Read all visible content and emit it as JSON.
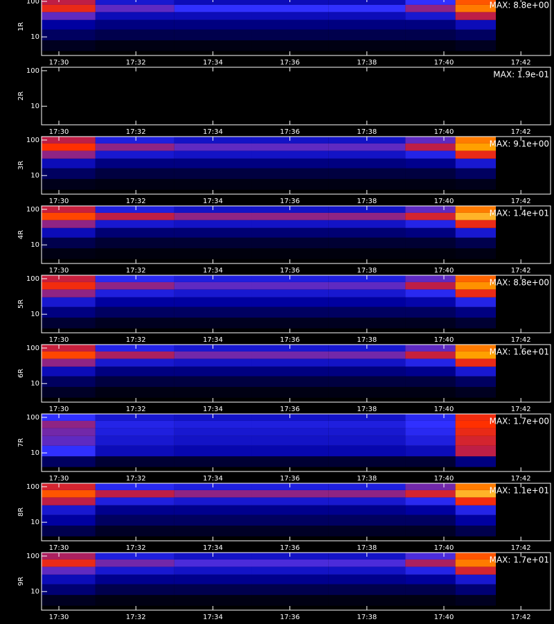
{
  "chart_data": [
    {
      "type": "heatmap",
      "ylabel": "1R",
      "annotation": "MAX: 8.8e+00",
      "log_y": true,
      "zlim": [
        0,
        1
      ],
      "xlim": [
        1049.55,
        1062.77
      ],
      "ylim": [
        3,
        125
      ],
      "xticks": [
        {
          "value": 1050,
          "label": "17:30"
        },
        {
          "value": 1052,
          "label": "17:32"
        },
        {
          "value": 1054,
          "label": "17:34"
        },
        {
          "value": 1056,
          "label": "17:36"
        },
        {
          "value": 1058,
          "label": "17:38"
        },
        {
          "value": 1060,
          "label": "17:40"
        },
        {
          "value": 1062,
          "label": "17:42"
        }
      ],
      "yticks": [
        10,
        100
      ],
      "x_bins": [
        1049.55,
        1050.95,
        1053,
        1055,
        1057,
        1059,
        1060.3,
        1061.35
      ],
      "y_bins": [
        4,
        8,
        16,
        30,
        50,
        80,
        125
      ],
      "values": [
        [
          0.05,
          0.03,
          0.03,
          0.03,
          0.03,
          0.03,
          0.05
        ],
        [
          0.15,
          0.12,
          0.12,
          0.12,
          0.12,
          0.12,
          0.15
        ],
        [
          0.25,
          0.2,
          0.2,
          0.2,
          0.2,
          0.2,
          0.3
        ],
        [
          0.5,
          0.3,
          0.3,
          0.3,
          0.3,
          0.35,
          0.6
        ],
        [
          0.7,
          0.5,
          0.45,
          0.45,
          0.45,
          0.55,
          0.85
        ],
        [
          0.6,
          0.35,
          0.3,
          0.3,
          0.3,
          0.45,
          0.8
        ]
      ]
    },
    {
      "type": "heatmap",
      "ylabel": "2R",
      "annotation": "MAX: 1.9e-01",
      "log_y": true,
      "zlim": [
        0,
        1
      ],
      "xlim": [
        1049.55,
        1062.77
      ],
      "ylim": [
        3,
        125
      ],
      "xticks": [
        {
          "value": 1050,
          "label": "17:30"
        },
        {
          "value": 1052,
          "label": "17:32"
        },
        {
          "value": 1054,
          "label": "17:34"
        },
        {
          "value": 1056,
          "label": "17:36"
        },
        {
          "value": 1058,
          "label": "17:38"
        },
        {
          "value": 1060,
          "label": "17:40"
        },
        {
          "value": 1062,
          "label": "17:42"
        }
      ],
      "yticks": [
        10,
        100
      ],
      "x_bins": [
        1049.55,
        1050.95,
        1053,
        1055,
        1057,
        1059,
        1060.3,
        1061.35
      ],
      "y_bins": [
        4,
        8,
        16,
        30,
        50,
        80,
        125
      ],
      "values": [
        [
          0,
          0,
          0,
          0,
          0,
          0,
          0
        ],
        [
          0,
          0,
          0,
          0,
          0,
          0,
          0
        ],
        [
          0,
          0,
          0,
          0,
          0,
          0,
          0
        ],
        [
          0,
          0,
          0,
          0,
          0,
          0,
          0
        ],
        [
          0,
          0,
          0,
          0,
          0,
          0,
          0
        ],
        [
          0,
          0,
          0,
          0,
          0,
          0,
          0
        ]
      ]
    },
    {
      "type": "heatmap",
      "ylabel": "3R",
      "annotation": "MAX: 9.1e+00",
      "log_y": true,
      "zlim": [
        0,
        1
      ],
      "xlim": [
        1049.55,
        1062.77
      ],
      "ylim": [
        3,
        125
      ],
      "xticks": [
        {
          "value": 1050,
          "label": "17:30"
        },
        {
          "value": 1052,
          "label": "17:32"
        },
        {
          "value": 1054,
          "label": "17:34"
        },
        {
          "value": 1056,
          "label": "17:36"
        },
        {
          "value": 1058,
          "label": "17:38"
        },
        {
          "value": 1060,
          "label": "17:40"
        },
        {
          "value": 1062,
          "label": "17:42"
        }
      ],
      "yticks": [
        10,
        100
      ],
      "x_bins": [
        1049.55,
        1050.95,
        1053,
        1055,
        1057,
        1059,
        1060.3,
        1061.35
      ],
      "y_bins": [
        4,
        8,
        16,
        30,
        50,
        80,
        125
      ],
      "values": [
        [
          0.04,
          0.03,
          0.03,
          0.03,
          0.03,
          0.03,
          0.04
        ],
        [
          0.15,
          0.1,
          0.1,
          0.1,
          0.1,
          0.1,
          0.15
        ],
        [
          0.3,
          0.2,
          0.2,
          0.2,
          0.2,
          0.22,
          0.35
        ],
        [
          0.55,
          0.35,
          0.33,
          0.33,
          0.33,
          0.4,
          0.7
        ],
        [
          0.75,
          0.55,
          0.5,
          0.5,
          0.5,
          0.6,
          0.9
        ],
        [
          0.6,
          0.38,
          0.33,
          0.33,
          0.33,
          0.5,
          0.85
        ]
      ]
    },
    {
      "type": "heatmap",
      "ylabel": "4R",
      "annotation": "MAX: 1.4e+01",
      "log_y": true,
      "zlim": [
        0,
        1
      ],
      "xlim": [
        1049.55,
        1062.77
      ],
      "ylim": [
        3,
        125
      ],
      "xticks": [
        {
          "value": 1050,
          "label": "17:30"
        },
        {
          "value": 1052,
          "label": "17:32"
        },
        {
          "value": 1054,
          "label": "17:34"
        },
        {
          "value": 1056,
          "label": "17:36"
        },
        {
          "value": 1058,
          "label": "17:38"
        },
        {
          "value": 1060,
          "label": "17:40"
        },
        {
          "value": 1062,
          "label": "17:42"
        }
      ],
      "yticks": [
        10,
        100
      ],
      "x_bins": [
        1049.55,
        1050.95,
        1053,
        1055,
        1057,
        1059,
        1060.3,
        1061.35
      ],
      "y_bins": [
        4,
        8,
        16,
        30,
        50,
        80,
        125
      ],
      "values": [
        [
          0.03,
          0.02,
          0.02,
          0.02,
          0.02,
          0.02,
          0.03
        ],
        [
          0.12,
          0.08,
          0.08,
          0.08,
          0.08,
          0.08,
          0.12
        ],
        [
          0.3,
          0.18,
          0.18,
          0.18,
          0.18,
          0.2,
          0.35
        ],
        [
          0.55,
          0.35,
          0.33,
          0.33,
          0.33,
          0.4,
          0.7
        ],
        [
          0.78,
          0.6,
          0.55,
          0.55,
          0.55,
          0.65,
          0.92
        ],
        [
          0.62,
          0.38,
          0.33,
          0.33,
          0.33,
          0.5,
          0.85
        ]
      ]
    },
    {
      "type": "heatmap",
      "ylabel": "5R",
      "annotation": "MAX: 8.8e+00",
      "log_y": true,
      "zlim": [
        0,
        1
      ],
      "xlim": [
        1049.55,
        1062.77
      ],
      "ylim": [
        3,
        125
      ],
      "xticks": [
        {
          "value": 1050,
          "label": "17:30"
        },
        {
          "value": 1052,
          "label": "17:32"
        },
        {
          "value": 1054,
          "label": "17:34"
        },
        {
          "value": 1056,
          "label": "17:36"
        },
        {
          "value": 1058,
          "label": "17:38"
        },
        {
          "value": 1060,
          "label": "17:40"
        },
        {
          "value": 1062,
          "label": "17:42"
        }
      ],
      "yticks": [
        10,
        100
      ],
      "x_bins": [
        1049.55,
        1050.95,
        1053,
        1055,
        1057,
        1059,
        1060.3,
        1061.35
      ],
      "y_bins": [
        4,
        8,
        16,
        30,
        50,
        80,
        125
      ],
      "values": [
        [
          0.08,
          0.05,
          0.05,
          0.05,
          0.05,
          0.05,
          0.08
        ],
        [
          0.2,
          0.15,
          0.15,
          0.15,
          0.15,
          0.15,
          0.2
        ],
        [
          0.35,
          0.25,
          0.25,
          0.25,
          0.25,
          0.27,
          0.4
        ],
        [
          0.55,
          0.38,
          0.35,
          0.35,
          0.35,
          0.42,
          0.7
        ],
        [
          0.72,
          0.55,
          0.5,
          0.5,
          0.5,
          0.6,
          0.88
        ],
        [
          0.62,
          0.42,
          0.38,
          0.38,
          0.38,
          0.5,
          0.82
        ]
      ]
    },
    {
      "type": "heatmap",
      "ylabel": "6R",
      "annotation": "MAX: 1.6e+01",
      "log_y": true,
      "zlim": [
        0,
        1
      ],
      "xlim": [
        1049.55,
        1062.77
      ],
      "ylim": [
        3,
        125
      ],
      "xticks": [
        {
          "value": 1050,
          "label": "17:30"
        },
        {
          "value": 1052,
          "label": "17:32"
        },
        {
          "value": 1054,
          "label": "17:34"
        },
        {
          "value": 1056,
          "label": "17:36"
        },
        {
          "value": 1058,
          "label": "17:38"
        },
        {
          "value": 1060,
          "label": "17:40"
        },
        {
          "value": 1062,
          "label": "17:42"
        }
      ],
      "yticks": [
        10,
        100
      ],
      "x_bins": [
        1049.55,
        1050.95,
        1053,
        1055,
        1057,
        1059,
        1060.3,
        1061.35
      ],
      "y_bins": [
        4,
        8,
        16,
        30,
        50,
        80,
        125
      ],
      "values": [
        [
          0.06,
          0.03,
          0.03,
          0.03,
          0.03,
          0.03,
          0.05
        ],
        [
          0.15,
          0.1,
          0.1,
          0.1,
          0.1,
          0.1,
          0.15
        ],
        [
          0.3,
          0.2,
          0.2,
          0.2,
          0.2,
          0.22,
          0.35
        ],
        [
          0.55,
          0.35,
          0.33,
          0.33,
          0.33,
          0.4,
          0.7
        ],
        [
          0.78,
          0.58,
          0.52,
          0.52,
          0.52,
          0.62,
          0.9
        ],
        [
          0.62,
          0.4,
          0.35,
          0.35,
          0.35,
          0.5,
          0.85
        ]
      ]
    },
    {
      "type": "heatmap",
      "ylabel": "7R",
      "annotation": "MAX: 1.7e+00",
      "log_y": true,
      "zlim": [
        0,
        1
      ],
      "xlim": [
        1049.55,
        1062.77
      ],
      "ylim": [
        3,
        125
      ],
      "xticks": [
        {
          "value": 1050,
          "label": "17:30"
        },
        {
          "value": 1052,
          "label": "17:32"
        },
        {
          "value": 1054,
          "label": "17:34"
        },
        {
          "value": 1056,
          "label": "17:36"
        },
        {
          "value": 1058,
          "label": "17:38"
        },
        {
          "value": 1060,
          "label": "17:40"
        },
        {
          "value": 1062,
          "label": "17:42"
        }
      ],
      "yticks": [
        10,
        100
      ],
      "x_bins": [
        1049.55,
        1050.95,
        1053,
        1055,
        1057,
        1059,
        1060.3,
        1061.35
      ],
      "y_bins": [
        4,
        8,
        16,
        30,
        50,
        80,
        125
      ],
      "values": [
        [
          0.15,
          0.08,
          0.08,
          0.08,
          0.08,
          0.08,
          0.2
        ],
        [
          0.45,
          0.3,
          0.28,
          0.28,
          0.28,
          0.3,
          0.6
        ],
        [
          0.5,
          0.35,
          0.33,
          0.33,
          0.33,
          0.38,
          0.65
        ],
        [
          0.52,
          0.38,
          0.35,
          0.35,
          0.35,
          0.42,
          0.7
        ],
        [
          0.55,
          0.4,
          0.38,
          0.38,
          0.38,
          0.45,
          0.75
        ],
        [
          0.45,
          0.35,
          0.33,
          0.33,
          0.33,
          0.42,
          0.72
        ]
      ]
    },
    {
      "type": "heatmap",
      "ylabel": "8R",
      "annotation": "MAX: 1.1e+01",
      "log_y": true,
      "zlim": [
        0,
        1
      ],
      "xlim": [
        1049.55,
        1062.77
      ],
      "ylim": [
        3,
        125
      ],
      "xticks": [
        {
          "value": 1050,
          "label": "17:30"
        },
        {
          "value": 1052,
          "label": "17:32"
        },
        {
          "value": 1054,
          "label": "17:34"
        },
        {
          "value": 1056,
          "label": "17:36"
        },
        {
          "value": 1058,
          "label": "17:38"
        },
        {
          "value": 1060,
          "label": "17:40"
        },
        {
          "value": 1062,
          "label": "17:42"
        }
      ],
      "yticks": [
        10,
        100
      ],
      "x_bins": [
        1049.55,
        1050.95,
        1053,
        1055,
        1057,
        1059,
        1060.3,
        1061.35
      ],
      "y_bins": [
        4,
        8,
        16,
        30,
        50,
        80,
        125
      ],
      "values": [
        [
          0.12,
          0.06,
          0.06,
          0.06,
          0.06,
          0.06,
          0.12
        ],
        [
          0.25,
          0.15,
          0.15,
          0.15,
          0.15,
          0.15,
          0.25
        ],
        [
          0.35,
          0.22,
          0.22,
          0.22,
          0.22,
          0.25,
          0.4
        ],
        [
          0.6,
          0.38,
          0.35,
          0.35,
          0.35,
          0.42,
          0.72
        ],
        [
          0.8,
          0.6,
          0.55,
          0.55,
          0.55,
          0.65,
          0.92
        ],
        [
          0.65,
          0.42,
          0.38,
          0.38,
          0.38,
          0.52,
          0.85
        ]
      ]
    },
    {
      "type": "heatmap",
      "ylabel": "9R",
      "annotation": "MAX: 1.7e+01",
      "log_y": true,
      "zlim": [
        0,
        1
      ],
      "xlim": [
        1049.55,
        1062.77
      ],
      "ylim": [
        3,
        125
      ],
      "xticks": [
        {
          "value": 1050,
          "label": "17:30"
        },
        {
          "value": 1052,
          "label": "17:32"
        },
        {
          "value": 1054,
          "label": "17:34"
        },
        {
          "value": 1056,
          "label": "17:36"
        },
        {
          "value": 1058,
          "label": "17:38"
        },
        {
          "value": 1060,
          "label": "17:40"
        },
        {
          "value": 1062,
          "label": "17:42"
        }
      ],
      "yticks": [
        10,
        100
      ],
      "x_bins": [
        1049.55,
        1050.95,
        1053,
        1055,
        1057,
        1059,
        1060.3,
        1061.35
      ],
      "y_bins": [
        4,
        8,
        16,
        30,
        50,
        80,
        125
      ],
      "values": [
        [
          0.05,
          0.03,
          0.03,
          0.03,
          0.03,
          0.03,
          0.05
        ],
        [
          0.18,
          0.12,
          0.12,
          0.12,
          0.12,
          0.12,
          0.18
        ],
        [
          0.3,
          0.22,
          0.22,
          0.22,
          0.22,
          0.24,
          0.35
        ],
        [
          0.5,
          0.35,
          0.33,
          0.33,
          0.33,
          0.4,
          0.65
        ],
        [
          0.7,
          0.52,
          0.48,
          0.48,
          0.48,
          0.58,
          0.85
        ],
        [
          0.58,
          0.38,
          0.33,
          0.33,
          0.33,
          0.48,
          0.8
        ]
      ]
    }
  ]
}
